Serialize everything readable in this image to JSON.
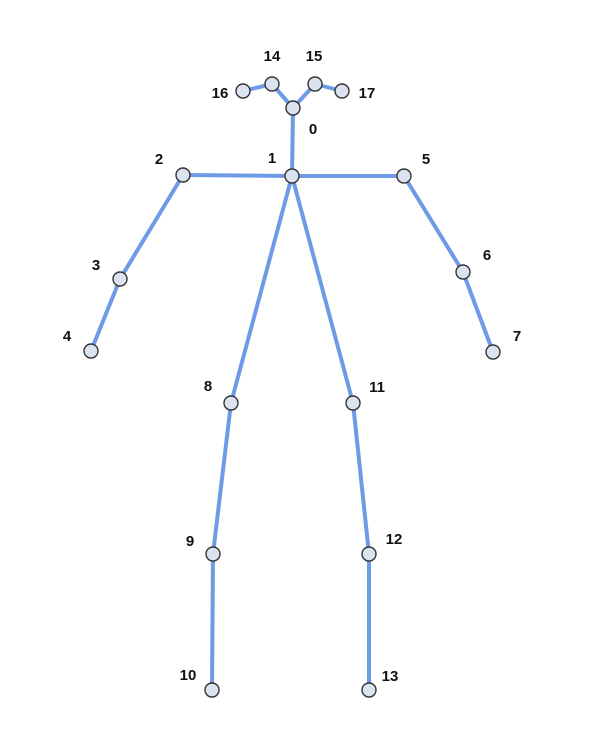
{
  "colors": {
    "bone": "#6f9be6",
    "joint_fill": "#dbe3f1",
    "joint_stroke": "#333333",
    "label": "#111111",
    "background": "#ffffff"
  },
  "keypoints": [
    {
      "id": 0,
      "label": "0"
    },
    {
      "id": 1,
      "label": "1"
    },
    {
      "id": 2,
      "label": "2"
    },
    {
      "id": 3,
      "label": "3"
    },
    {
      "id": 4,
      "label": "4"
    },
    {
      "id": 5,
      "label": "5"
    },
    {
      "id": 6,
      "label": "6"
    },
    {
      "id": 7,
      "label": "7"
    },
    {
      "id": 8,
      "label": "8"
    },
    {
      "id": 9,
      "label": "9"
    },
    {
      "id": 10,
      "label": "10"
    },
    {
      "id": 11,
      "label": "11"
    },
    {
      "id": 12,
      "label": "12"
    },
    {
      "id": 13,
      "label": "13"
    },
    {
      "id": 14,
      "label": "14"
    },
    {
      "id": 15,
      "label": "15"
    },
    {
      "id": 16,
      "label": "16"
    },
    {
      "id": 17,
      "label": "17"
    }
  ],
  "connections": [
    [
      0,
      1
    ],
    [
      0,
      14
    ],
    [
      0,
      15
    ],
    [
      14,
      16
    ],
    [
      15,
      17
    ],
    [
      1,
      2
    ],
    [
      2,
      3
    ],
    [
      3,
      4
    ],
    [
      1,
      5
    ],
    [
      5,
      6
    ],
    [
      6,
      7
    ],
    [
      1,
      8
    ],
    [
      8,
      9
    ],
    [
      9,
      10
    ],
    [
      1,
      11
    ],
    [
      11,
      12
    ],
    [
      12,
      13
    ]
  ]
}
